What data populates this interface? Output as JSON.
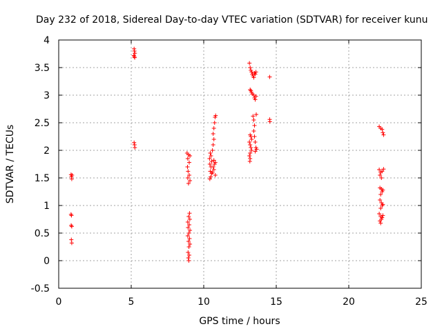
{
  "chart_data": {
    "type": "scatter",
    "title": "Day 232 of 2018, Sidereal Day-to-day VTEC variation (SDTVAR) for receiver kunu",
    "xlabel": "GPS time / hours",
    "ylabel": "SDTVAR / TECUs",
    "xlim": [
      0,
      25
    ],
    "ylim": [
      -0.5,
      4
    ],
    "x_ticks": [
      0,
      5,
      10,
      15,
      20,
      25
    ],
    "y_ticks": [
      -0.5,
      0,
      0.5,
      1,
      1.5,
      2,
      2.5,
      3,
      3.5,
      4
    ],
    "x_tick_labels": [
      "0",
      "5",
      "10",
      "15",
      "20",
      "25"
    ],
    "y_tick_labels": [
      "-0.5",
      "0",
      "0.5",
      "1",
      "1.5",
      "2",
      "2.5",
      "3",
      "3.5",
      "4"
    ],
    "grid": true,
    "marker": "+",
    "marker_color": "#ff0000",
    "series": [
      {
        "name": "SDTVAR",
        "points": [
          [
            0.85,
            1.56
          ],
          [
            0.88,
            1.52
          ],
          [
            0.9,
            1.48
          ],
          [
            0.92,
            1.55
          ],
          [
            0.85,
            0.84
          ],
          [
            0.88,
            0.82
          ],
          [
            0.86,
            0.64
          ],
          [
            0.9,
            0.62
          ],
          [
            0.87,
            0.38
          ],
          [
            0.9,
            0.32
          ],
          [
            5.2,
            3.84
          ],
          [
            5.22,
            3.8
          ],
          [
            5.25,
            3.76
          ],
          [
            5.18,
            3.72
          ],
          [
            5.21,
            3.7
          ],
          [
            5.24,
            3.68
          ],
          [
            5.2,
            2.14
          ],
          [
            5.23,
            2.1
          ],
          [
            5.25,
            2.05
          ],
          [
            8.85,
            1.95
          ],
          [
            8.95,
            1.92
          ],
          [
            9.05,
            1.9
          ],
          [
            8.9,
            1.85
          ],
          [
            9.0,
            1.78
          ],
          [
            8.88,
            1.7
          ],
          [
            8.92,
            1.62
          ],
          [
            9.0,
            1.55
          ],
          [
            8.9,
            1.5
          ],
          [
            9.05,
            1.45
          ],
          [
            8.95,
            1.4
          ],
          [
            9.02,
            0.86
          ],
          [
            8.96,
            0.8
          ],
          [
            9.04,
            0.75
          ],
          [
            8.9,
            0.7
          ],
          [
            9.0,
            0.65
          ],
          [
            8.92,
            0.6
          ],
          [
            9.05,
            0.55
          ],
          [
            8.98,
            0.5
          ],
          [
            8.9,
            0.45
          ],
          [
            9.02,
            0.4
          ],
          [
            8.95,
            0.35
          ],
          [
            9.05,
            0.3
          ],
          [
            8.98,
            0.25
          ],
          [
            8.92,
            0.15
          ],
          [
            9.0,
            0.1
          ],
          [
            8.94,
            0.05
          ],
          [
            8.97,
            0.0
          ],
          [
            10.45,
            1.95
          ],
          [
            10.5,
            1.9
          ],
          [
            10.4,
            1.85
          ],
          [
            10.55,
            1.8
          ],
          [
            10.42,
            1.75
          ],
          [
            10.5,
            1.7
          ],
          [
            10.45,
            1.62
          ],
          [
            10.55,
            1.58
          ],
          [
            10.48,
            1.52
          ],
          [
            10.42,
            1.48
          ],
          [
            10.6,
            1.6
          ],
          [
            10.7,
            1.65
          ],
          [
            10.65,
            1.7
          ],
          [
            10.75,
            1.75
          ],
          [
            10.7,
            1.82
          ],
          [
            10.8,
            1.78
          ],
          [
            10.6,
            2.0
          ],
          [
            10.65,
            2.1
          ],
          [
            10.7,
            2.2
          ],
          [
            10.65,
            2.3
          ],
          [
            10.7,
            2.4
          ],
          [
            10.75,
            2.5
          ],
          [
            10.78,
            2.6
          ],
          [
            10.82,
            2.63
          ],
          [
            10.8,
            1.55
          ],
          [
            13.15,
            3.58
          ],
          [
            13.2,
            3.5
          ],
          [
            13.25,
            3.45
          ],
          [
            13.3,
            3.42
          ],
          [
            13.35,
            3.38
          ],
          [
            13.4,
            3.35
          ],
          [
            13.45,
            3.32
          ],
          [
            13.5,
            3.4
          ],
          [
            13.55,
            3.38
          ],
          [
            13.6,
            3.42
          ],
          [
            13.2,
            3.1
          ],
          [
            13.25,
            3.08
          ],
          [
            13.3,
            3.05
          ],
          [
            13.35,
            3.02
          ],
          [
            13.45,
            3.0
          ],
          [
            13.5,
            2.95
          ],
          [
            13.55,
            2.92
          ],
          [
            13.6,
            2.98
          ],
          [
            13.2,
            2.28
          ],
          [
            13.25,
            2.25
          ],
          [
            13.3,
            2.2
          ],
          [
            13.15,
            2.15
          ],
          [
            13.2,
            2.1
          ],
          [
            13.25,
            2.05
          ],
          [
            13.3,
            2.0
          ],
          [
            13.2,
            1.95
          ],
          [
            13.15,
            1.9
          ],
          [
            13.2,
            1.85
          ],
          [
            13.18,
            1.8
          ],
          [
            13.4,
            2.62
          ],
          [
            13.45,
            2.55
          ],
          [
            13.5,
            2.45
          ],
          [
            13.45,
            2.35
          ],
          [
            13.5,
            2.25
          ],
          [
            13.55,
            2.15
          ],
          [
            13.6,
            2.05
          ],
          [
            13.65,
            2.02
          ],
          [
            13.55,
            1.98
          ],
          [
            13.62,
            2.65
          ],
          [
            14.55,
            3.33
          ],
          [
            14.55,
            2.56
          ],
          [
            14.56,
            2.52
          ],
          [
            22.1,
            2.43
          ],
          [
            22.2,
            2.4
          ],
          [
            22.3,
            2.38
          ],
          [
            22.35,
            2.32
          ],
          [
            22.4,
            2.28
          ],
          [
            22.1,
            1.65
          ],
          [
            22.2,
            1.6
          ],
          [
            22.15,
            1.55
          ],
          [
            22.3,
            1.62
          ],
          [
            22.4,
            1.66
          ],
          [
            22.25,
            1.5
          ],
          [
            22.15,
            1.32
          ],
          [
            22.25,
            1.3
          ],
          [
            22.3,
            1.25
          ],
          [
            22.2,
            1.2
          ],
          [
            22.35,
            1.28
          ],
          [
            22.15,
            1.1
          ],
          [
            22.25,
            1.05
          ],
          [
            22.3,
            1.0
          ],
          [
            22.2,
            0.95
          ],
          [
            22.35,
            1.02
          ],
          [
            22.1,
            0.85
          ],
          [
            22.2,
            0.8
          ],
          [
            22.3,
            0.78
          ],
          [
            22.25,
            0.75
          ],
          [
            22.15,
            0.72
          ],
          [
            22.35,
            0.82
          ],
          [
            22.2,
            0.68
          ]
        ]
      }
    ]
  }
}
